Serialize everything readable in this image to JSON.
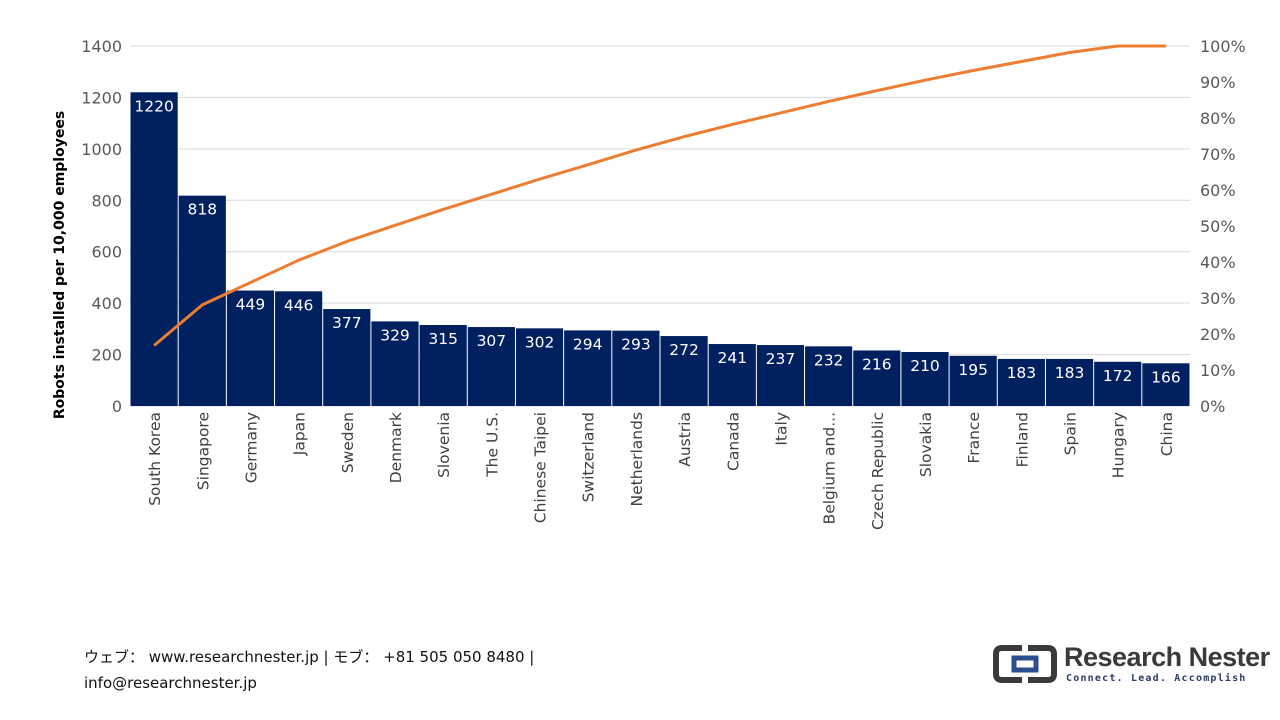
{
  "chart_data": {
    "type": "bar",
    "categories": [
      "South Korea",
      "Singapore",
      "Germany",
      "Japan",
      "Sweden",
      "Denmark",
      "Slovenia",
      "The U.S.",
      "Chinese Taipei",
      "Switzerland",
      "Netherlands",
      "Austria",
      "Canada",
      "Italy",
      "Belgium and...",
      "Czech Republic",
      "Slovakia",
      "France",
      "Finland",
      "Spain",
      "Hungary",
      "China"
    ],
    "series": [
      {
        "values": [
          1220,
          818,
          449,
          446,
          377,
          329,
          315,
          307,
          302,
          294,
          293,
          272,
          241,
          237,
          232,
          216,
          210,
          195,
          183,
          183,
          172,
          166
        ],
        "color": "#002060",
        "axis": "left"
      },
      {
        "type": "line",
        "values": [
          16.8,
          28.1,
          34.3,
          40.5,
          45.7,
          50.2,
          54.6,
          58.8,
          63.0,
          67.0,
          71.1,
          74.8,
          78.2,
          81.4,
          84.6,
          87.6,
          90.5,
          93.2,
          95.7,
          98.2,
          100.0,
          100.0
        ],
        "color": "#ED7D31",
        "axis": "right"
      }
    ],
    "ylabel": "Robots installed per 10,000 employees",
    "ylim": [
      0,
      1400
    ],
    "yticks": [
      "0",
      "200",
      "400",
      "600",
      "800",
      "1000",
      "1200",
      "1400"
    ],
    "y2lim": [
      0,
      100
    ],
    "y2ticks": [
      "0%",
      "10%",
      "20%",
      "30%",
      "40%",
      "50%",
      "60%",
      "70%",
      "80%",
      "90%",
      "100%"
    ],
    "grid": true,
    "data_labels": true
  },
  "footer": {
    "line1": "ウェブ： www.researchnester.jp | モブ： +81 505 050 8480 |",
    "line2": "info@researchnester.jp"
  },
  "logo": {
    "name": "Research Nester",
    "tagline": "Connect. Lead. Accomplish",
    "colors": {
      "icon_dark": "#3a3a3a",
      "icon_accent": "#2e4d8f"
    }
  }
}
